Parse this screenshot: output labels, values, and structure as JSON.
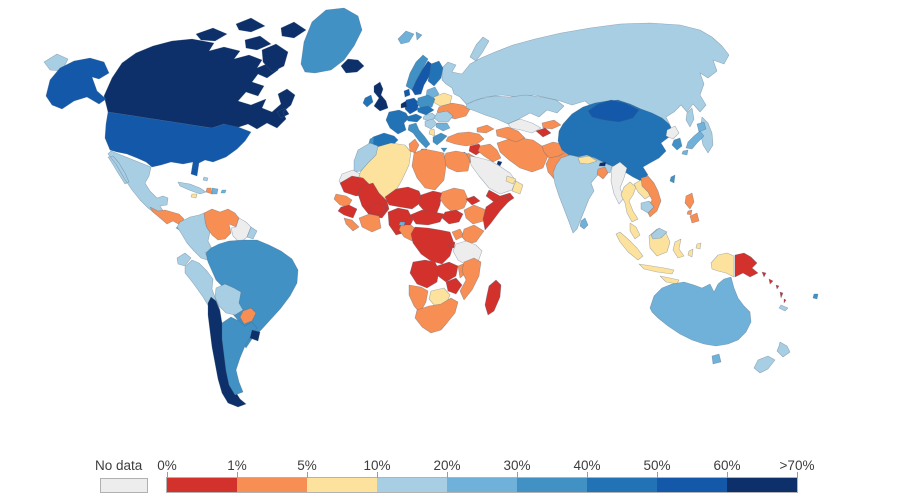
{
  "legend": {
    "no_data_label": "No data",
    "no_data_color": "#ededed",
    "no_data_border": "#b0b0b0",
    "tick_labels": [
      "0%",
      "1%",
      "5%",
      "10%",
      "20%",
      "30%",
      "40%",
      "50%",
      "60%",
      ">70%"
    ],
    "bucket_colors": [
      "#d2322b",
      "#f78e54",
      "#fce29d",
      "#a8cee4",
      "#70b1d9",
      "#4191c5",
      "#2272b6",
      "#1459a9",
      "#0d2f6a"
    ],
    "label_color": "#3d3d3d",
    "tick_color": "#9c9c9c"
  },
  "map": {
    "ocean_color": "#ffffff",
    "border_color": "#46617c",
    "border_opacity": "0.45"
  },
  "chart_data": {
    "type": "heatmap",
    "subtype": "choropleth_world_map",
    "value_format": "percent",
    "legend_position": "bottom",
    "bins": [
      {
        "label": "0% - 1%",
        "color": "#d2322b"
      },
      {
        "label": "1% - 5%",
        "color": "#f78e54"
      },
      {
        "label": "5% - 10%",
        "color": "#fce29d"
      },
      {
        "label": "10% - 20%",
        "color": "#a8cee4"
      },
      {
        "label": "20% - 30%",
        "color": "#70b1d9"
      },
      {
        "label": "30% - 40%",
        "color": "#4191c5"
      },
      {
        "label": "40% - 50%",
        "color": "#2272b6"
      },
      {
        "label": "50% - 60%",
        "color": "#1459a9"
      },
      {
        "label": "60% - >70%",
        "color": "#0d2f6a"
      }
    ],
    "no_data": {
      "label": "No data",
      "color": "#ededed"
    },
    "region_bins": {
      "russia": 3,
      "canada": 8,
      "canadian_arctic_islands": 8,
      "alaska": 7,
      "usa": 7,
      "greenland": 5,
      "mexico": 3,
      "central_america": 1,
      "costa_rica_panama": 4,
      "cuba": 3,
      "jamaica": 2,
      "haiti": 1,
      "dominican_republic": 4,
      "puerto_rico": 4,
      "bahamas": 3,
      "colombia": 3,
      "venezuela": 1,
      "guyana_suriname": -1,
      "french_guiana": 3,
      "ecuador": 3,
      "peru": 3,
      "brazil": 5,
      "bolivia": 3,
      "paraguay": 1,
      "chile": 8,
      "argentina": 5,
      "uruguay": 8,
      "iceland": 8,
      "svalbard": 4,
      "united_kingdom": 8,
      "ireland": 6,
      "norway": 5,
      "sweden": 7,
      "finland": 6,
      "denmark": 7,
      "baltic_states": 4,
      "belarus": 2,
      "ukraine": 1,
      "france": 6,
      "germany": 7,
      "benelux": 8,
      "spain": 6,
      "portugal": 5,
      "italy": 5,
      "switzerland_austria": 6,
      "poland": 5,
      "czechia_slovakia": 6,
      "hungary": 3,
      "romania": 3,
      "serbia_balkans": 3,
      "bulgaria": 4,
      "albania": 2,
      "greece": 5,
      "turkey": 1,
      "syria": 0,
      "lebanon_jordan": 1,
      "israel": 7,
      "iraq": 1,
      "iran": 1,
      "saudi_arabia": -1,
      "yemen": 0,
      "oman": 2,
      "uae": 2,
      "kuwait": 8,
      "egypt": 1,
      "caucasus": 1,
      "kazakhstan": 3,
      "uzbekistan": -1,
      "turkmenistan": 1,
      "kyrgyzstan": 1,
      "tajikistan": 0,
      "afghanistan": 1,
      "pakistan": 1,
      "morocco": 3,
      "western_sahara": -1,
      "algeria": 2,
      "tunisia": 1,
      "libya": 1,
      "mauritania": 0,
      "mali": 0,
      "senegal_gambia": 1,
      "guinea_region": 0,
      "sierra_leone_liberia": 1,
      "ivory_coast_ghana": 1,
      "burkina_faso": 0,
      "niger": 0,
      "nigeria": 0,
      "chad": 0,
      "sudan": 1,
      "south_sudan": 0,
      "eritrea": 0,
      "ethiopia": 1,
      "somalia": 0,
      "cameroon_car": 0,
      "gabon_congo": 1,
      "equatorial_guinea": 4,
      "drc": 0,
      "uganda": 1,
      "kenya": 1,
      "rwanda_burundi": 0,
      "tanzania": -1,
      "angola": 0,
      "zambia": 0,
      "malawi": 1,
      "mozambique": 1,
      "zimbabwe": 0,
      "botswana": 2,
      "namibia": 1,
      "south_africa": 1,
      "madagascar": 0,
      "china": 6,
      "mongolia": 7,
      "north_korea": -1,
      "south_korea": 5,
      "japan": 4,
      "taiwan": 5,
      "india": 3,
      "nepal": 2,
      "bhutan": 8,
      "bangladesh": 1,
      "sri_lanka": 4,
      "myanmar": -1,
      "thailand": 2,
      "laos": 2,
      "vietnam": 1,
      "cambodia": 3,
      "malaysia": 2,
      "east_malaysia": 3,
      "indonesia": 2,
      "philippines": 1,
      "papua_new_guinea": 0,
      "solomon_islands": 0,
      "vanuatu": 0,
      "fiji": 5,
      "new_caledonia": 3,
      "australia": 4,
      "new_zealand": 3
    }
  }
}
